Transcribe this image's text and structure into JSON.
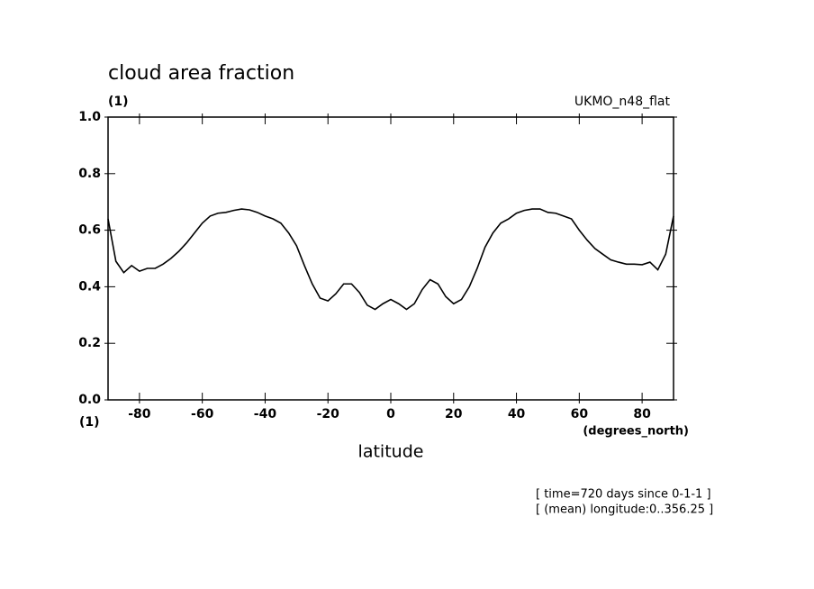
{
  "chart_data": {
    "type": "line",
    "title": "cloud area fraction",
    "y_units": "(1)",
    "dataset": "UKMO_n48_flat",
    "x_units_left": "(1)",
    "x_units": "(degrees_north)",
    "x_label": "latitude",
    "footnotes": [
      "[ time=720 days since 0-1-1 ]",
      "[ (mean) longitude:0..356.25 ]"
    ],
    "x": [
      -90,
      -87.5,
      -85,
      -82.5,
      -80,
      -77.5,
      -75,
      -72.5,
      -70,
      -67.5,
      -65,
      -62.5,
      -60,
      -57.5,
      -55,
      -52.5,
      -50,
      -47.5,
      -45,
      -42.5,
      -40,
      -37.5,
      -35,
      -32.5,
      -30,
      -27.5,
      -25,
      -22.5,
      -20,
      -17.5,
      -15,
      -12.5,
      -10,
      -7.5,
      -5,
      -2.5,
      0,
      2.5,
      5,
      7.5,
      10,
      12.5,
      15,
      17.5,
      20,
      22.5,
      25,
      27.5,
      30,
      32.5,
      35,
      37.5,
      40,
      42.5,
      45,
      47.5,
      50,
      52.5,
      55,
      57.5,
      60,
      62.5,
      65,
      67.5,
      70,
      72.5,
      75,
      77.5,
      80,
      82.5,
      85,
      87.5,
      90
    ],
    "series": [
      {
        "color": "#000000",
        "values": [
          0.64,
          0.49,
          0.45,
          0.475,
          0.455,
          0.465,
          0.465,
          0.48,
          0.5,
          0.525,
          0.555,
          0.59,
          0.625,
          0.65,
          0.66,
          0.663,
          0.67,
          0.675,
          0.672,
          0.663,
          0.65,
          0.64,
          0.625,
          0.59,
          0.545,
          0.475,
          0.41,
          0.36,
          0.35,
          0.375,
          0.41,
          0.41,
          0.38,
          0.335,
          0.32,
          0.34,
          0.355,
          0.34,
          0.32,
          0.34,
          0.39,
          0.425,
          0.41,
          0.365,
          0.34,
          0.355,
          0.4,
          0.465,
          0.54,
          0.59,
          0.625,
          0.64,
          0.66,
          0.67,
          0.675,
          0.675,
          0.663,
          0.66,
          0.65,
          0.64,
          0.6,
          0.565,
          0.535,
          0.515,
          0.495,
          0.487,
          0.48,
          0.48,
          0.478,
          0.487,
          0.46,
          0.515,
          0.65
        ]
      }
    ],
    "xlim": [
      -90,
      90
    ],
    "xticks": [
      -80,
      -60,
      -40,
      -20,
      0,
      20,
      40,
      60,
      80
    ],
    "ylim": [
      0,
      1
    ],
    "yticks": [
      {
        "value": 0,
        "label": "0.0"
      },
      0.2,
      0.4,
      0.6,
      0.8,
      {
        "value": 1,
        "label": "1.0"
      }
    ]
  }
}
